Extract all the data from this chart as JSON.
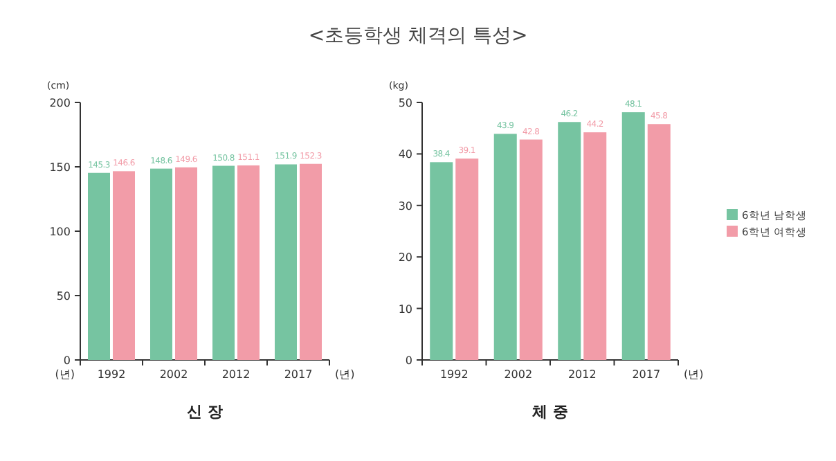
{
  "chart_data": [
    {
      "type": "bar",
      "title": "<초등학생 체격의 특성>",
      "subtitle": "신 장",
      "xlabel": "(년)",
      "ylabel": "(cm)",
      "annotations": [
        "(년)"
      ],
      "categories": [
        "1992",
        "2002",
        "2012",
        "2017"
      ],
      "ylim": [
        0,
        200
      ],
      "yticks": [
        0,
        50,
        100,
        150,
        200
      ],
      "data_labels": true,
      "series": [
        {
          "color": "#76c4a1",
          "values": [
            145.3,
            148.6,
            150.8,
            151.9
          ]
        },
        {
          "color": "#f29ca8",
          "values": [
            146.6,
            149.6,
            151.1,
            152.3
          ]
        }
      ]
    },
    {
      "type": "bar",
      "subtitle": "체 중",
      "xlabel": "(년)",
      "ylabel": "(kg)",
      "categories": [
        "1992",
        "2002",
        "2012",
        "2017"
      ],
      "ylim": [
        0,
        50
      ],
      "yticks": [
        0,
        10,
        20,
        30,
        40,
        50
      ],
      "data_labels": true,
      "legend": "right",
      "series": [
        {
          "name": "6학년 남학생",
          "color": "#76c4a1",
          "values": [
            38.4,
            43.9,
            46.2,
            48.1
          ]
        },
        {
          "name": "6학년 여학생",
          "color": "#f29ca8",
          "values": [
            39.1,
            42.8,
            44.2,
            45.8
          ]
        }
      ]
    }
  ]
}
